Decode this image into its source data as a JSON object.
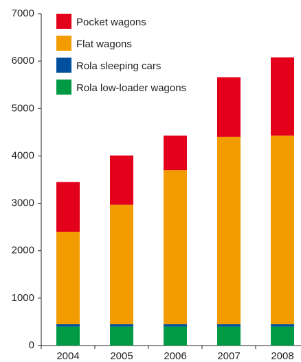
{
  "chart_data": {
    "type": "stacked_bar",
    "categories": [
      "2004",
      "2005",
      "2006",
      "2007",
      "2008"
    ],
    "series": [
      {
        "name": "Rola low-loader wagons",
        "color": "#009a44",
        "values": [
          400,
          400,
          400,
          400,
          400
        ]
      },
      {
        "name": "Rola sleeping cars",
        "color": "#004f9f",
        "values": [
          50,
          50,
          50,
          50,
          50
        ]
      },
      {
        "name": "Flat wagons",
        "color": "#f39c00",
        "values": [
          1950,
          2520,
          3250,
          3950,
          3980
        ]
      },
      {
        "name": "Pocket wagons",
        "color": "#e2001a",
        "values": [
          1050,
          1040,
          730,
          1260,
          1650
        ]
      }
    ],
    "ylim": [
      0,
      7000
    ],
    "yticks": [
      0,
      1000,
      2000,
      3000,
      4000,
      5000,
      6000,
      7000
    ],
    "legend": "upper left"
  }
}
